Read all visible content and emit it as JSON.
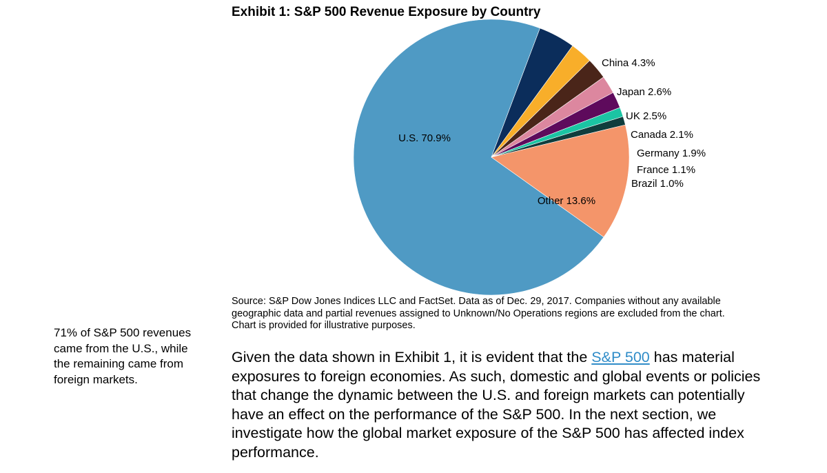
{
  "chart_data": {
    "type": "pie",
    "title": "Exhibit 1: S&P 500 Revenue Exposure by Country",
    "slices": [
      {
        "name": "U.S.",
        "label": "U.S. 70.9%",
        "value": 70.9,
        "color": "#4f9ac4"
      },
      {
        "name": "China",
        "label": "China 4.3%",
        "value": 4.3,
        "color": "#0b2d5b"
      },
      {
        "name": "Japan",
        "label": "Japan 2.6%",
        "value": 2.6,
        "color": "#f8ae2a"
      },
      {
        "name": "UK",
        "label": "UK 2.5%",
        "value": 2.5,
        "color": "#4a2519"
      },
      {
        "name": "Canada",
        "label": "Canada 2.1%",
        "value": 2.1,
        "color": "#dc879f"
      },
      {
        "name": "Germany",
        "label": "Germany 1.9%",
        "value": 1.9,
        "color": "#5e0a5c"
      },
      {
        "name": "France",
        "label": "France 1.1%",
        "value": 1.1,
        "color": "#1bc4a3"
      },
      {
        "name": "Brazil",
        "label": "Brazil 1.0%",
        "value": 1.0,
        "color": "#0f3d3d"
      },
      {
        "name": "Other",
        "label": "Other 13.6%",
        "value": 13.6,
        "color": "#f4956a"
      }
    ]
  },
  "source_note": "Source: S&P Dow Jones Indices LLC and FactSet.  Data as of Dec. 29, 2017. Companies without any available geographic data and partial revenues assigned to Unknown/No Operations regions are excluded from the chart.  Chart is provided for illustrative purposes.",
  "side_note": "71% of S&P 500 revenues came from the U.S., while the remaining came from foreign markets.",
  "body": {
    "before_link": "Given the data shown in Exhibit 1, it is evident that the ",
    "link_text": "S&P 500",
    "after_link": " has material exposures to foreign economies.  As such, domestic and global events or policies that change the dynamic between the U.S. and foreign markets can potentially have an effect on the performance of the S&P 500. In the next section, we investigate how the global market exposure of the S&P 500 has affected index performance."
  }
}
